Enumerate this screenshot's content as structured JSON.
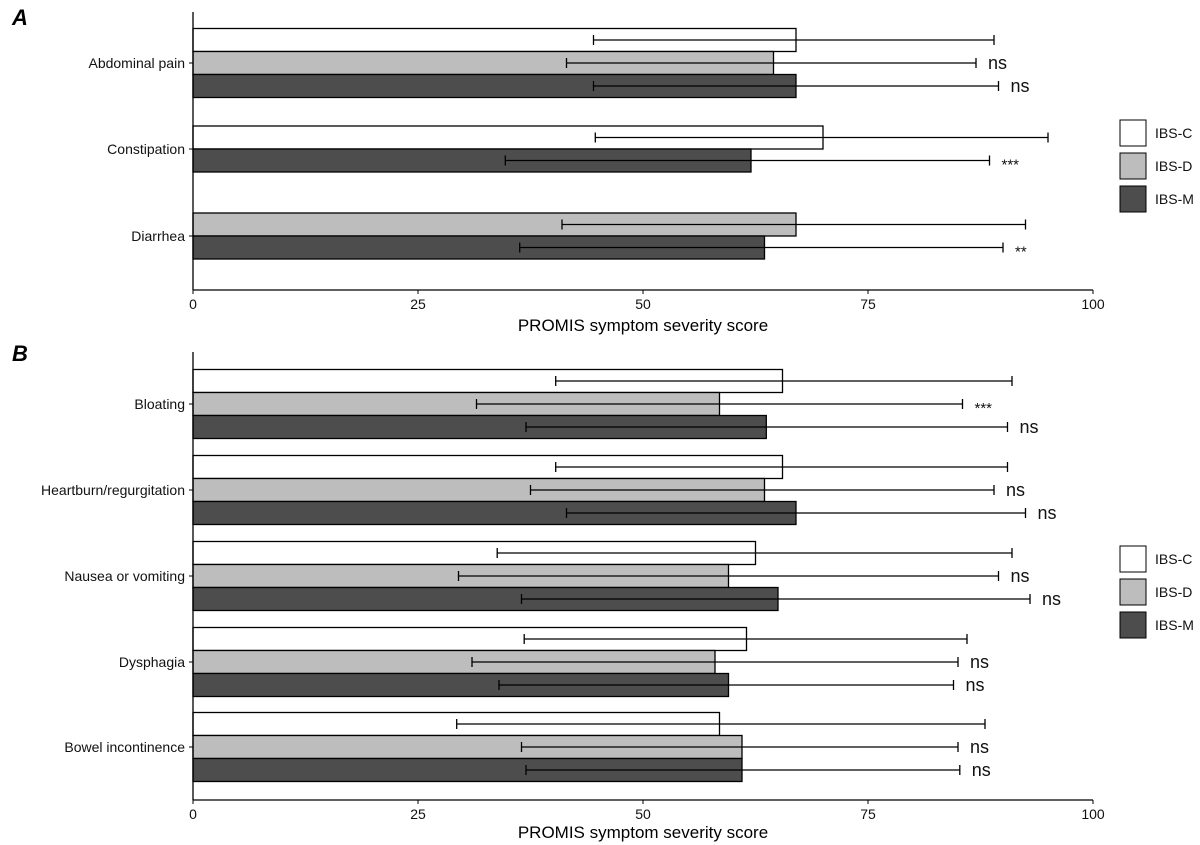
{
  "chart_data": [
    {
      "type": "bar",
      "orientation": "horizontal",
      "panel_label": "A",
      "categories": [
        "Abdominal pain",
        "Constipation",
        "Diarrhea"
      ],
      "series": [
        {
          "name": "IBS-C",
          "color": "#ffffff",
          "values": [
            67,
            70,
            null
          ],
          "error_low": [
            44.5,
            44.7,
            null
          ],
          "error_high": [
            89,
            95,
            null
          ],
          "significance": [
            null,
            null,
            null
          ]
        },
        {
          "name": "IBS-D",
          "color": "#bdbdbd",
          "values": [
            64.5,
            null,
            67
          ],
          "error_low": [
            41.5,
            null,
            41
          ],
          "error_high": [
            87,
            null,
            92.5
          ],
          "significance": [
            "ns",
            null,
            null
          ]
        },
        {
          "name": "IBS-M",
          "color": "#4d4d4d",
          "values": [
            67,
            62,
            63.5
          ],
          "error_low": [
            44.5,
            34.7,
            36.3
          ],
          "error_high": [
            89.5,
            88.5,
            90
          ],
          "significance": [
            "ns",
            "***",
            "**"
          ]
        }
      ],
      "xlim": [
        0,
        100
      ],
      "xticks": [
        0,
        25,
        50,
        75,
        100
      ],
      "xlabel": "PROMIS symptom severity score",
      "ylabel": "",
      "legend": {
        "position": "right",
        "entries": [
          "IBS-C",
          "IBS-D",
          "IBS-M"
        ]
      }
    },
    {
      "type": "bar",
      "orientation": "horizontal",
      "panel_label": "B",
      "categories": [
        "Bloating",
        "Heartburn/regurgitation",
        "Nausea or vomiting",
        "Dysphagia",
        "Bowel incontinence"
      ],
      "series": [
        {
          "name": "IBS-C",
          "color": "#ffffff",
          "values": [
            65.5,
            65.5,
            62.5,
            61.5,
            58.5
          ],
          "error_low": [
            40.3,
            40.3,
            33.8,
            36.8,
            29.3
          ],
          "error_high": [
            91,
            90.5,
            91,
            86,
            88
          ],
          "significance": [
            null,
            null,
            null,
            null,
            null
          ]
        },
        {
          "name": "IBS-D",
          "color": "#bdbdbd",
          "values": [
            58.5,
            63.5,
            59.5,
            58,
            61
          ],
          "error_low": [
            31.5,
            37.5,
            29.5,
            31,
            36.5
          ],
          "error_high": [
            85.5,
            89,
            89.5,
            85,
            85
          ],
          "significance": [
            "***",
            "ns",
            "ns",
            "ns",
            "ns"
          ]
        },
        {
          "name": "IBS-M",
          "color": "#4d4d4d",
          "values": [
            63.7,
            67,
            65,
            59.5,
            61
          ],
          "error_low": [
            37,
            41.5,
            36.5,
            34,
            37
          ],
          "error_high": [
            90.5,
            92.5,
            93,
            84.5,
            85.2
          ],
          "significance": [
            "ns",
            "ns",
            "ns",
            "ns",
            "ns"
          ]
        }
      ],
      "xlim": [
        0,
        100
      ],
      "xticks": [
        0,
        25,
        50,
        75,
        100
      ],
      "xlabel": "PROMIS symptom severity score",
      "ylabel": "",
      "legend": {
        "position": "right",
        "entries": [
          "IBS-C",
          "IBS-D",
          "IBS-M"
        ]
      }
    }
  ]
}
